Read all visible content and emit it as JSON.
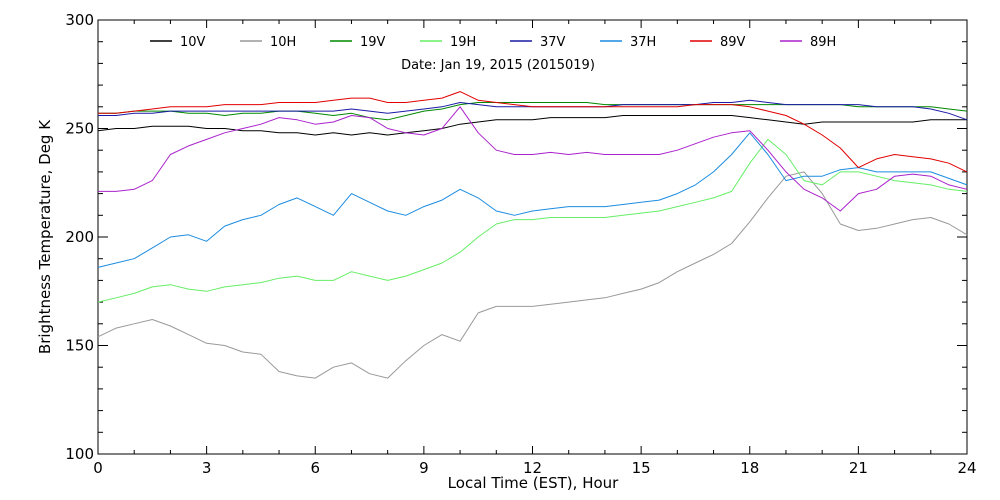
{
  "chart_data": {
    "type": "line",
    "subtitle": "Date: Jan 19, 2015 (2015019)",
    "xlabel": "Local Time (EST), Hour",
    "ylabel": "Brightness Temperature, Deg K",
    "xlim": [
      0,
      24
    ],
    "ylim": [
      100,
      300
    ],
    "xticks": [
      0,
      3,
      6,
      9,
      12,
      15,
      18,
      21,
      24
    ],
    "yticks": [
      100,
      150,
      200,
      250,
      300
    ],
    "grid": false,
    "legend_position": "top",
    "x": [
      0,
      0.5,
      1,
      1.5,
      2,
      2.5,
      3,
      3.5,
      4,
      4.5,
      5,
      5.5,
      6,
      6.5,
      7,
      7.5,
      8,
      8.5,
      9,
      9.5,
      10,
      10.5,
      11,
      11.5,
      12,
      12.5,
      13,
      13.5,
      14,
      14.5,
      15,
      15.5,
      16,
      16.5,
      17,
      17.5,
      18,
      18.5,
      19,
      19.5,
      20,
      20.5,
      21,
      21.5,
      22,
      22.5,
      23,
      23.5,
      24
    ],
    "series": [
      {
        "name": "10V",
        "color": "#000000",
        "values": [
          249,
          250,
          250,
          251,
          251,
          251,
          250,
          250,
          249,
          249,
          248,
          248,
          247,
          248,
          247,
          248,
          247,
          248,
          249,
          250,
          252,
          253,
          254,
          254,
          254,
          255,
          255,
          255,
          255,
          256,
          256,
          256,
          256,
          256,
          256,
          256,
          255,
          254,
          253,
          252,
          253,
          253,
          253,
          253,
          253,
          253,
          254,
          254,
          254
        ]
      },
      {
        "name": "10H",
        "color": "#999999",
        "values": [
          154,
          158,
          160,
          162,
          159,
          155,
          151,
          150,
          147,
          146,
          138,
          136,
          135,
          140,
          142,
          137,
          135,
          143,
          150,
          155,
          152,
          165,
          168,
          168,
          168,
          169,
          170,
          171,
          172,
          174,
          176,
          179,
          184,
          188,
          192,
          197,
          207,
          218,
          228,
          230,
          220,
          206,
          203,
          204,
          206,
          208,
          209,
          206,
          201
        ]
      },
      {
        "name": "19V",
        "color": "#008800",
        "values": [
          257,
          257,
          258,
          258,
          258,
          257,
          257,
          256,
          257,
          257,
          258,
          258,
          257,
          256,
          257,
          255,
          254,
          256,
          258,
          259,
          261,
          262,
          262,
          262,
          262,
          262,
          262,
          262,
          261,
          261,
          261,
          261,
          261,
          261,
          261,
          261,
          261,
          261,
          261,
          261,
          261,
          261,
          260,
          260,
          260,
          260,
          260,
          259,
          258
        ]
      },
      {
        "name": "19H",
        "color": "#66ee66",
        "values": [
          170,
          172,
          174,
          177,
          178,
          176,
          175,
          177,
          178,
          179,
          181,
          182,
          180,
          180,
          184,
          182,
          180,
          182,
          185,
          188,
          193,
          200,
          206,
          208,
          208,
          209,
          209,
          209,
          209,
          210,
          211,
          212,
          214,
          216,
          218,
          221,
          234,
          245,
          238,
          226,
          224,
          230,
          230,
          228,
          226,
          225,
          224,
          222,
          221
        ]
      },
      {
        "name": "37V",
        "color": "#1a1aa6",
        "values": [
          256,
          256,
          257,
          257,
          258,
          258,
          258,
          258,
          258,
          258,
          258,
          258,
          258,
          258,
          259,
          258,
          257,
          258,
          259,
          260,
          262,
          261,
          260,
          260,
          260,
          260,
          260,
          260,
          260,
          261,
          261,
          261,
          261,
          261,
          262,
          262,
          263,
          262,
          261,
          261,
          261,
          261,
          261,
          260,
          260,
          260,
          259,
          257,
          254
        ]
      },
      {
        "name": "37H",
        "color": "#1c8ce0",
        "values": [
          186,
          188,
          190,
          195,
          200,
          201,
          198,
          205,
          208,
          210,
          215,
          218,
          214,
          210,
          220,
          216,
          212,
          210,
          214,
          217,
          222,
          218,
          212,
          210,
          212,
          213,
          214,
          214,
          214,
          215,
          216,
          217,
          220,
          224,
          230,
          238,
          248,
          238,
          226,
          228,
          228,
          231,
          232,
          230,
          230,
          230,
          230,
          227,
          224
        ]
      },
      {
        "name": "89V",
        "color": "#e00000",
        "values": [
          257,
          257,
          258,
          259,
          260,
          260,
          260,
          261,
          261,
          261,
          262,
          262,
          262,
          263,
          264,
          264,
          262,
          262,
          263,
          264,
          267,
          263,
          262,
          261,
          260,
          260,
          260,
          260,
          260,
          260,
          260,
          260,
          260,
          261,
          261,
          261,
          260,
          258,
          256,
          252,
          247,
          241,
          232,
          236,
          238,
          237,
          236,
          234,
          230
        ]
      },
      {
        "name": "89H",
        "color": "#aa22cc",
        "values": [
          221,
          221,
          222,
          226,
          238,
          242,
          245,
          248,
          250,
          252,
          255,
          254,
          252,
          253,
          256,
          255,
          250,
          248,
          247,
          250,
          260,
          248,
          240,
          238,
          238,
          239,
          238,
          239,
          238,
          238,
          238,
          238,
          240,
          243,
          246,
          248,
          249,
          240,
          230,
          222,
          218,
          212,
          220,
          222,
          228,
          229,
          228,
          224,
          222
        ]
      }
    ]
  }
}
